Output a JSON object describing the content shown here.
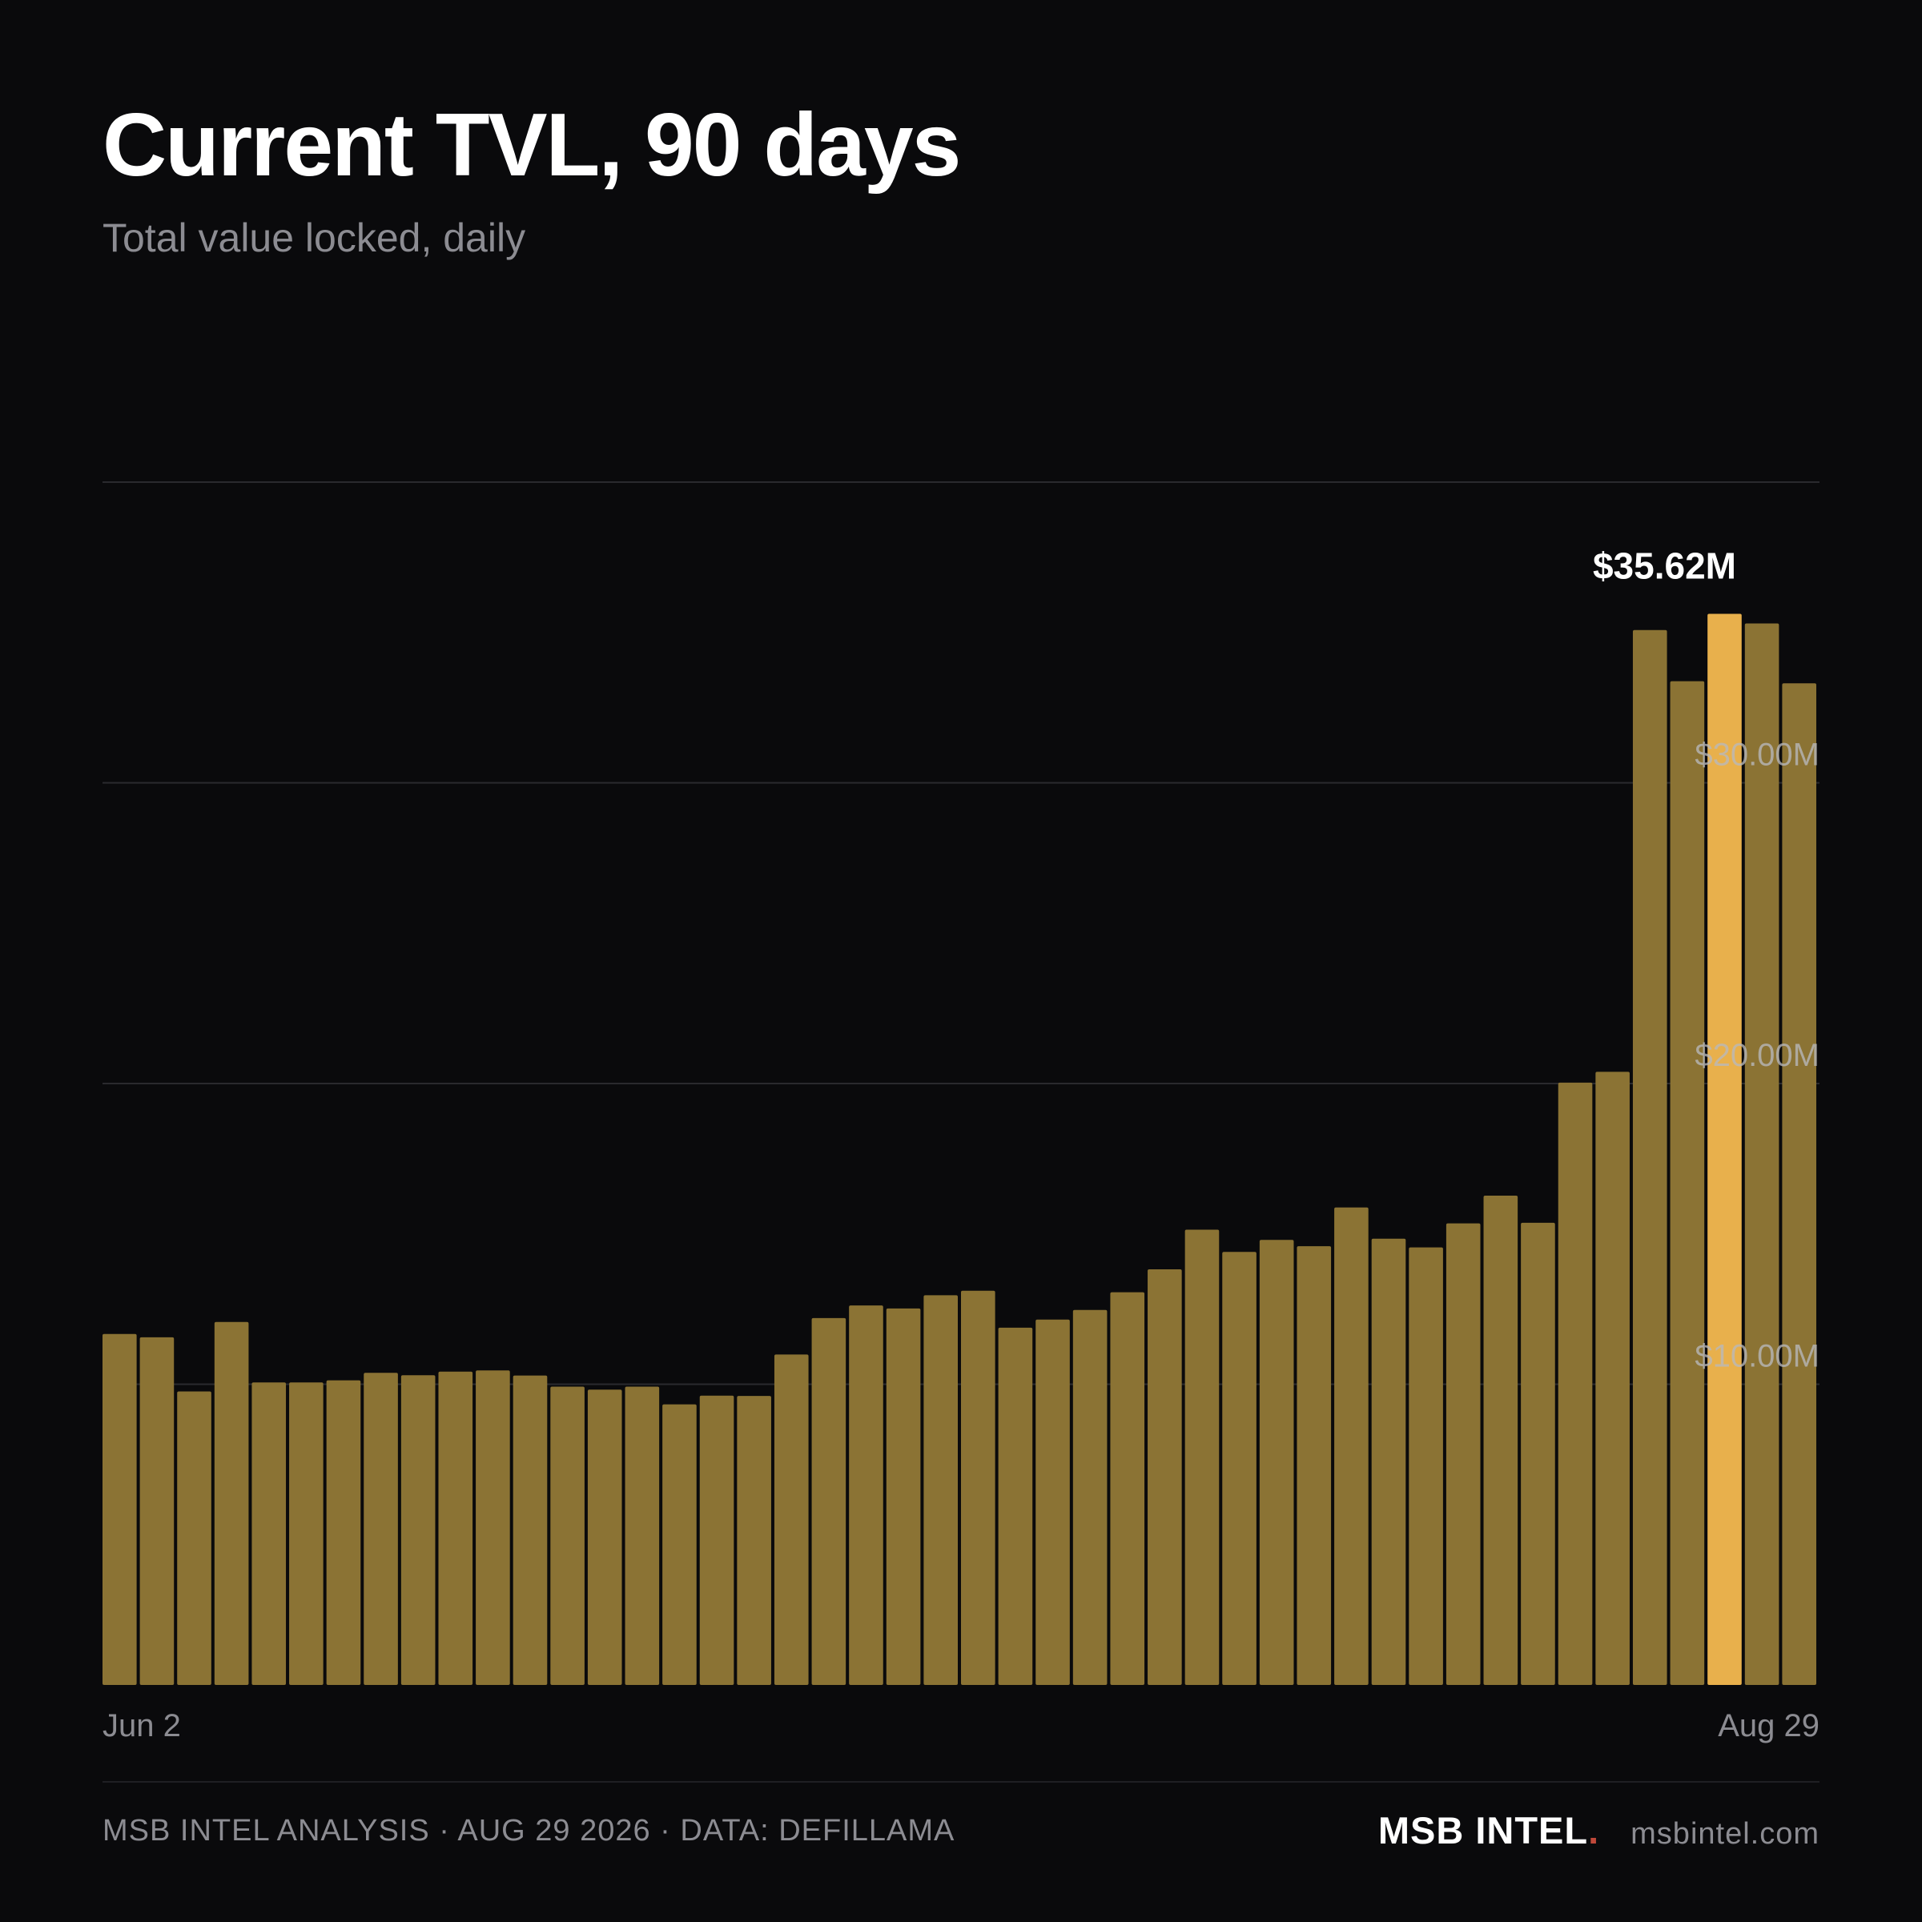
{
  "header": {
    "title": "Current TVL, 90 days",
    "subtitle": "Total value locked, daily"
  },
  "footer": {
    "left_text": "MSB INTEL ANALYSIS · AUG 29 2026 · DATA: DEFILLAMA",
    "brand": "MSB INTEL",
    "brand_dot": ".",
    "site": "msbintel.com"
  },
  "colors": {
    "background": "#0a0a0c",
    "bar": "#8b7334",
    "highlight": "#e8b04c",
    "grid": "#2a2a2e",
    "brand_dot": "#c0483a"
  },
  "chart_data": {
    "type": "bar",
    "title": "Current TVL, 90 days",
    "subtitle": "Total value locked, daily",
    "xlabel": "",
    "ylabel": "",
    "start_label": "Jun 2",
    "end_label": "Aug 29",
    "ylim": [
      0,
      40
    ],
    "y_ticks": [
      {
        "value": 10,
        "label": "$10.00M"
      },
      {
        "value": 20,
        "label": "$20.00M"
      },
      {
        "value": 30,
        "label": "$30.00M"
      }
    ],
    "grid": true,
    "unit": "$M",
    "values": [
      11.67,
      11.56,
      9.76,
      12.07,
      10.06,
      10.06,
      10.13,
      10.38,
      10.3,
      10.42,
      10.46,
      10.29,
      9.92,
      9.82,
      9.92,
      9.33,
      9.62,
      9.61,
      10.99,
      12.2,
      12.62,
      12.52,
      12.96,
      13.11,
      11.88,
      12.15,
      12.47,
      13.06,
      13.82,
      15.14,
      14.4,
      14.8,
      14.59,
      15.88,
      14.84,
      14.55,
      15.35,
      16.27,
      15.37,
      20.03,
      20.39,
      35.08,
      33.38,
      35.62,
      35.3,
      33.31
    ],
    "highlight_index": 43,
    "highlight_label": "$35.62M"
  }
}
